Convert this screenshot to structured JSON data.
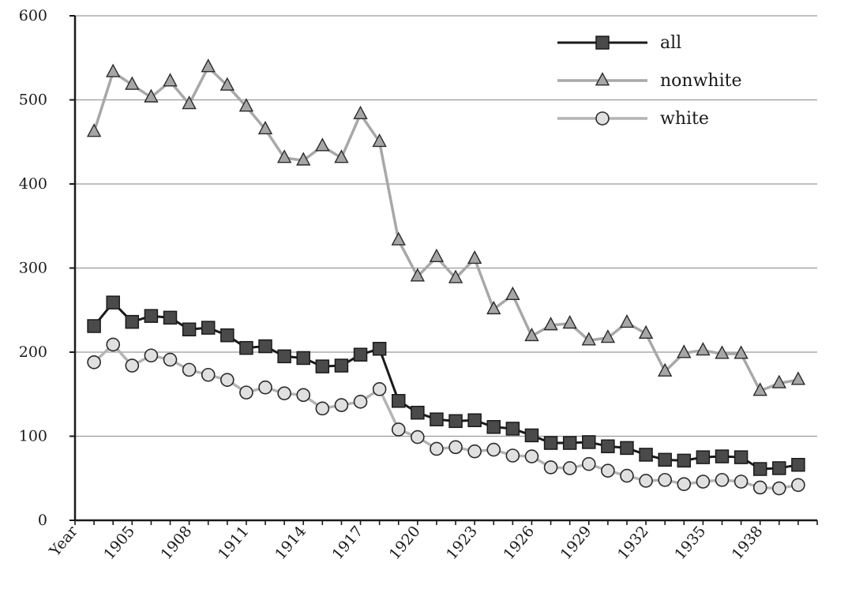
{
  "chart_data": {
    "type": "line",
    "title": "",
    "xlabel": "",
    "ylabel": "",
    "ylim": [
      0,
      600
    ],
    "yticks": [
      0,
      100,
      200,
      300,
      400,
      500,
      600
    ],
    "grid": "horizontal",
    "legend_position": "top-right",
    "x": [
      1903,
      1904,
      1905,
      1906,
      1907,
      1908,
      1909,
      1910,
      1911,
      1912,
      1913,
      1914,
      1915,
      1916,
      1917,
      1918,
      1919,
      1920,
      1921,
      1922,
      1923,
      1924,
      1925,
      1926,
      1927,
      1928,
      1929,
      1930,
      1931,
      1932,
      1933,
      1934,
      1935,
      1936,
      1937,
      1938,
      1939,
      1940
    ],
    "xtick_labels": [
      {
        "x": 1902,
        "label": "Year"
      },
      {
        "x": 1905,
        "label": "1905"
      },
      {
        "x": 1908,
        "label": "1908"
      },
      {
        "x": 1911,
        "label": "1911"
      },
      {
        "x": 1914,
        "label": "1914"
      },
      {
        "x": 1917,
        "label": "1917"
      },
      {
        "x": 1920,
        "label": "1920"
      },
      {
        "x": 1923,
        "label": "1923"
      },
      {
        "x": 1926,
        "label": "1926"
      },
      {
        "x": 1929,
        "label": "1929"
      },
      {
        "x": 1932,
        "label": "1932"
      },
      {
        "x": 1935,
        "label": "1935"
      },
      {
        "x": 1938,
        "label": "1938"
      }
    ],
    "series": [
      {
        "name": "nonwhite",
        "marker": "triangle",
        "line_color": "#a8a8a8",
        "marker_fill": "#a6a6a6",
        "values": [
          462,
          533,
          518,
          503,
          522,
          495,
          539,
          517,
          492,
          465,
          431,
          428,
          445,
          431,
          483,
          450,
          333,
          290,
          313,
          288,
          311,
          251,
          268,
          219,
          232,
          234,
          214,
          217,
          235,
          222,
          177,
          199,
          202,
          198,
          198,
          154,
          163,
          167
        ]
      },
      {
        "name": "all",
        "marker": "square",
        "line_color": "#1a1a1a",
        "marker_fill": "#4a4a4a",
        "values": [
          231,
          259,
          236,
          243,
          241,
          227,
          229,
          220,
          205,
          207,
          195,
          193,
          183,
          184,
          197,
          204,
          142,
          128,
          120,
          118,
          119,
          111,
          109,
          101,
          92,
          92,
          93,
          88,
          86,
          78,
          72,
          71,
          75,
          76,
          75,
          61,
          62,
          66
        ]
      },
      {
        "name": "white",
        "marker": "circle",
        "line_color": "#b4b4b4",
        "marker_fill": "#e0e0e0",
        "values": [
          188,
          209,
          184,
          196,
          191,
          179,
          173,
          167,
          152,
          158,
          151,
          149,
          133,
          137,
          141,
          156,
          108,
          99,
          85,
          87,
          82,
          84,
          77,
          76,
          63,
          62,
          67,
          59,
          53,
          47,
          48,
          43,
          46,
          48,
          46,
          39,
          38,
          42
        ]
      }
    ],
    "legend": [
      {
        "series": "all",
        "label": "all"
      },
      {
        "series": "nonwhite",
        "label": "nonwhite"
      },
      {
        "series": "white",
        "label": "white"
      }
    ]
  }
}
